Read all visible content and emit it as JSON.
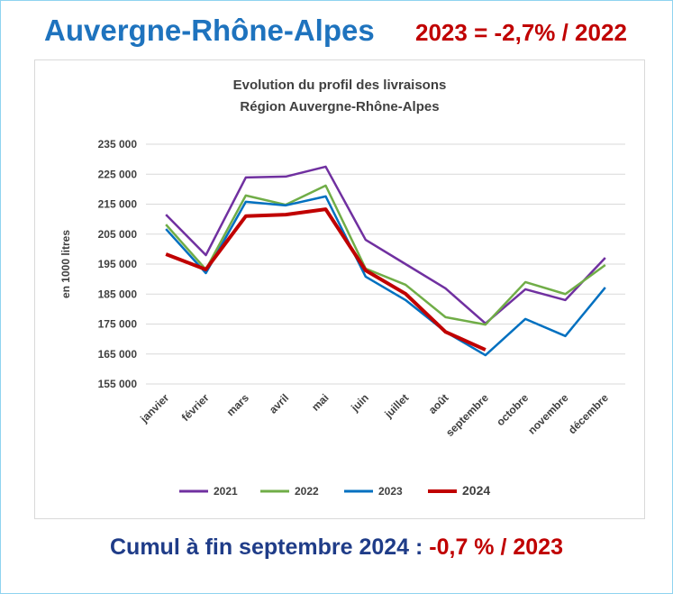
{
  "header": {
    "title": "Auvergne-Rhône-Alpes",
    "subtitle": "2023 = -2,7% / 2022"
  },
  "footer": {
    "text": "Cumul à fin septembre 2024 :",
    "highlight": "-0,7 % / 2023"
  },
  "chart_data": {
    "type": "line",
    "title": "Evolution du profil des livraisons",
    "subtitle": "Région Auvergne-Rhône-Alpes",
    "y_label": "en 1000 litres",
    "categories": [
      "janvier",
      "février",
      "mars",
      "avril",
      "mai",
      "juin",
      "juillet",
      "août",
      "septembre",
      "octobre",
      "novembre",
      "décembre"
    ],
    "series": [
      {
        "name": "2021",
        "color": "#7030a0",
        "values": [
          211500,
          198000,
          223900,
          224200,
          227500,
          203100,
          195000,
          186900,
          175200,
          186600,
          183000,
          197100
        ]
      },
      {
        "name": "2022",
        "color": "#70ad47",
        "values": [
          208200,
          193200,
          217900,
          214800,
          221200,
          193500,
          188100,
          177300,
          174800,
          189000,
          185000,
          194700
        ]
      },
      {
        "name": "2023",
        "color": "#0070c0",
        "values": [
          206700,
          192000,
          215800,
          214600,
          217600,
          190800,
          183000,
          172400,
          164600,
          176700,
          171000,
          187200
        ]
      },
      {
        "name": "2024",
        "color": "#c00000",
        "values": [
          198300,
          193200,
          211000,
          211500,
          213300,
          192900,
          185100,
          172400,
          166400,
          null,
          null,
          null
        ]
      }
    ],
    "ylim": [
      155000,
      235000
    ],
    "yticks": [
      {
        "value": 155000,
        "label": "155 000"
      },
      {
        "value": 165000,
        "label": "165 000"
      },
      {
        "value": 175000,
        "label": "175 000"
      },
      {
        "value": 185000,
        "label": "185 000"
      },
      {
        "value": 195000,
        "label": "195 000"
      },
      {
        "value": 205000,
        "label": "205 000"
      },
      {
        "value": 215000,
        "label": "215 000"
      },
      {
        "value": 225000,
        "label": "225 000"
      },
      {
        "value": 235000,
        "label": "235 000"
      }
    ],
    "grid": true,
    "legend": "bottom"
  }
}
